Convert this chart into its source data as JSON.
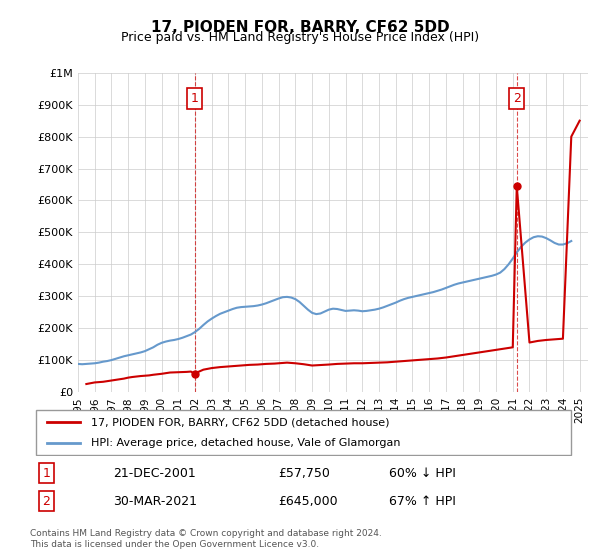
{
  "title": "17, PIODEN FOR, BARRY, CF62 5DD",
  "subtitle": "Price paid vs. HM Land Registry's House Price Index (HPI)",
  "ylabel_max": 1000000,
  "yticks": [
    0,
    100000,
    200000,
    300000,
    400000,
    500000,
    600000,
    700000,
    800000,
    900000,
    1000000
  ],
  "ytick_labels": [
    "£0",
    "£100K",
    "£200K",
    "£300K",
    "£400K",
    "£500K",
    "£600K",
    "£700K",
    "£800K",
    "£900K",
    "£1M"
  ],
  "xmin": 1995.0,
  "xmax": 2025.5,
  "hpi_color": "#6699cc",
  "price_color": "#cc0000",
  "background_color": "#ffffff",
  "grid_color": "#cccccc",
  "sale1_x": 2001.97,
  "sale1_y": 57750,
  "sale2_x": 2021.24,
  "sale2_y": 645000,
  "sale1_label": "1",
  "sale2_label": "2",
  "legend_line1": "17, PIODEN FOR, BARRY, CF62 5DD (detached house)",
  "legend_line2": "HPI: Average price, detached house, Vale of Glamorgan",
  "table_row1": [
    "1",
    "21-DEC-2001",
    "£57,750",
    "60% ↓ HPI"
  ],
  "table_row2": [
    "2",
    "30-MAR-2021",
    "£645,000",
    "67% ↑ HPI"
  ],
  "footer": "Contains HM Land Registry data © Crown copyright and database right 2024.\nThis data is licensed under the Open Government Licence v3.0.",
  "hpi_data_x": [
    1995.0,
    1995.25,
    1995.5,
    1995.75,
    1996.0,
    1996.25,
    1996.5,
    1996.75,
    1997.0,
    1997.25,
    1997.5,
    1997.75,
    1998.0,
    1998.25,
    1998.5,
    1998.75,
    1999.0,
    1999.25,
    1999.5,
    1999.75,
    2000.0,
    2000.25,
    2000.5,
    2000.75,
    2001.0,
    2001.25,
    2001.5,
    2001.75,
    2002.0,
    2002.25,
    2002.5,
    2002.75,
    2003.0,
    2003.25,
    2003.5,
    2003.75,
    2004.0,
    2004.25,
    2004.5,
    2004.75,
    2005.0,
    2005.25,
    2005.5,
    2005.75,
    2006.0,
    2006.25,
    2006.5,
    2006.75,
    2007.0,
    2007.25,
    2007.5,
    2007.75,
    2008.0,
    2008.25,
    2008.5,
    2008.75,
    2009.0,
    2009.25,
    2009.5,
    2009.75,
    2010.0,
    2010.25,
    2010.5,
    2010.75,
    2011.0,
    2011.25,
    2011.5,
    2011.75,
    2012.0,
    2012.25,
    2012.5,
    2012.75,
    2013.0,
    2013.25,
    2013.5,
    2013.75,
    2014.0,
    2014.25,
    2014.5,
    2014.75,
    2015.0,
    2015.25,
    2015.5,
    2015.75,
    2016.0,
    2016.25,
    2016.5,
    2016.75,
    2017.0,
    2017.25,
    2017.5,
    2017.75,
    2018.0,
    2018.25,
    2018.5,
    2018.75,
    2019.0,
    2019.25,
    2019.5,
    2019.75,
    2020.0,
    2020.25,
    2020.5,
    2020.75,
    2021.0,
    2021.25,
    2021.5,
    2021.75,
    2022.0,
    2022.25,
    2022.5,
    2022.75,
    2023.0,
    2023.25,
    2023.5,
    2023.75,
    2024.0,
    2024.25,
    2024.5
  ],
  "hpi_data_y": [
    88000,
    87000,
    88000,
    89000,
    90000,
    92000,
    95000,
    97000,
    100000,
    104000,
    108000,
    112000,
    115000,
    118000,
    121000,
    124000,
    128000,
    134000,
    140000,
    148000,
    154000,
    158000,
    161000,
    163000,
    166000,
    170000,
    175000,
    180000,
    188000,
    198000,
    210000,
    221000,
    230000,
    238000,
    245000,
    250000,
    255000,
    260000,
    264000,
    266000,
    267000,
    268000,
    269000,
    271000,
    274000,
    278000,
    283000,
    288000,
    293000,
    297000,
    298000,
    296000,
    291000,
    282000,
    270000,
    258000,
    248000,
    244000,
    246000,
    252000,
    258000,
    261000,
    260000,
    257000,
    254000,
    255000,
    256000,
    255000,
    253000,
    254000,
    256000,
    258000,
    261000,
    265000,
    270000,
    275000,
    280000,
    286000,
    291000,
    295000,
    298000,
    301000,
    304000,
    307000,
    310000,
    313000,
    317000,
    321000,
    326000,
    331000,
    336000,
    340000,
    343000,
    346000,
    349000,
    352000,
    355000,
    358000,
    361000,
    364000,
    368000,
    374000,
    385000,
    400000,
    418000,
    438000,
    455000,
    468000,
    478000,
    485000,
    488000,
    487000,
    482000,
    475000,
    467000,
    462000,
    462000,
    466000,
    473000
  ],
  "price_data_x": [
    1995.5,
    1996.0,
    1996.5,
    1997.0,
    1997.5,
    1997.75,
    1998.0,
    1998.25,
    1998.75,
    1999.25,
    1999.5,
    2000.0,
    2000.25,
    2000.5,
    2001.0,
    2001.5,
    2001.75,
    2001.97,
    2002.5,
    2003.0,
    2003.5,
    2004.0,
    2004.5,
    2004.75,
    2005.0,
    2005.25,
    2005.75,
    2006.0,
    2006.25,
    2006.75,
    2007.0,
    2007.25,
    2007.5,
    2008.0,
    2008.5,
    2009.0,
    2010.0,
    2010.5,
    2011.0,
    2011.5,
    2012.0,
    2012.5,
    2013.0,
    2013.5,
    2014.0,
    2014.5,
    2015.0,
    2015.5,
    2016.0,
    2016.5,
    2017.0,
    2017.5,
    2018.0,
    2018.5,
    2019.0,
    2019.5,
    2020.0,
    2021.0,
    2021.24,
    2022.0,
    2022.5,
    2023.0,
    2023.5,
    2024.0,
    2024.5,
    2025.0
  ],
  "price_data_y": [
    25000,
    30000,
    32000,
    36000,
    40000,
    42000,
    45000,
    47000,
    50000,
    52000,
    54000,
    57000,
    59000,
    61000,
    62000,
    63000,
    64000,
    57750,
    70000,
    75000,
    78000,
    80000,
    82000,
    83000,
    84000,
    85000,
    86000,
    87000,
    88000,
    89000,
    90000,
    91000,
    92000,
    90000,
    87000,
    83000,
    86000,
    88000,
    89000,
    90000,
    90000,
    91000,
    92000,
    93000,
    95000,
    97000,
    99000,
    101000,
    103000,
    105000,
    108000,
    112000,
    116000,
    120000,
    124000,
    128000,
    132000,
    140000,
    645000,
    155000,
    160000,
    163000,
    165000,
    167000,
    800000,
    850000
  ]
}
